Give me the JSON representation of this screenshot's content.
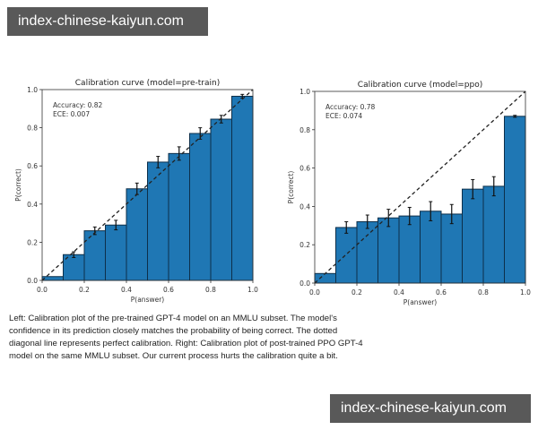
{
  "watermark": {
    "top": "index-chinese-kaiyun.com",
    "bottom": "index-chinese-kaiyun.com"
  },
  "colors": {
    "bar": "#1f77b4",
    "bar_edge": "#0d2f4a",
    "diagonal": "#222222",
    "axis": "#333333"
  },
  "caption": "Left: Calibration plot of the pre-trained GPT-4 model on an MMLU subset. The model's confidence in its prediction closely matches the probability of being correct. The dotted diagonal line represents perfect calibration. Right: Calibration plot of post-trained PPO GPT-4 model on the same MMLU subset. Our current process hurts the calibration quite a bit.",
  "chart_data": [
    {
      "type": "bar",
      "title": "Calibration curve (model=pre-train)",
      "xlabel": "P(answer)",
      "ylabel": "P(correct)",
      "annotation": [
        "Accuracy: 0.82",
        "ECE: 0.007"
      ],
      "xlim": [
        0,
        1
      ],
      "ylim": [
        0,
        1
      ],
      "xticks": [
        "0.0",
        "0.2",
        "0.4",
        "0.6",
        "0.8",
        "1.0"
      ],
      "yticks": [
        "0.0",
        "0.2",
        "0.4",
        "0.6",
        "0.8",
        "1.0"
      ],
      "bin_edges": [
        0.0,
        0.1,
        0.2,
        0.3,
        0.4,
        0.5,
        0.6,
        0.7,
        0.8,
        0.9,
        1.0
      ],
      "values": [
        0.02,
        0.135,
        0.26,
        0.29,
        0.48,
        0.62,
        0.665,
        0.77,
        0.845,
        0.965
      ],
      "errors": [
        0.0,
        0.015,
        0.02,
        0.025,
        0.03,
        0.03,
        0.035,
        0.03,
        0.02,
        0.01
      ],
      "reference_line": "perfect calibration (diagonal, dashed)",
      "grid": false
    },
    {
      "type": "bar",
      "title": "Calibration curve (model=ppo)",
      "xlabel": "P(answer)",
      "ylabel": "P(correct)",
      "annotation": [
        "Accuracy: 0.78",
        "ECE: 0.074"
      ],
      "xlim": [
        0,
        1
      ],
      "ylim": [
        0,
        1
      ],
      "xticks": [
        "0.0",
        "0.2",
        "0.4",
        "0.6",
        "0.8",
        "1.0"
      ],
      "yticks": [
        "0.0",
        "0.2",
        "0.4",
        "0.6",
        "0.8",
        "1.0"
      ],
      "bin_edges": [
        0.0,
        0.1,
        0.2,
        0.3,
        0.4,
        0.5,
        0.6,
        0.7,
        0.8,
        0.9,
        1.0
      ],
      "values": [
        0.05,
        0.29,
        0.32,
        0.34,
        0.35,
        0.375,
        0.36,
        0.49,
        0.505,
        0.87
      ],
      "errors": [
        0.0,
        0.03,
        0.035,
        0.045,
        0.045,
        0.05,
        0.05,
        0.05,
        0.05,
        0.005
      ],
      "reference_line": "perfect calibration (diagonal, dashed)",
      "grid": false
    }
  ]
}
